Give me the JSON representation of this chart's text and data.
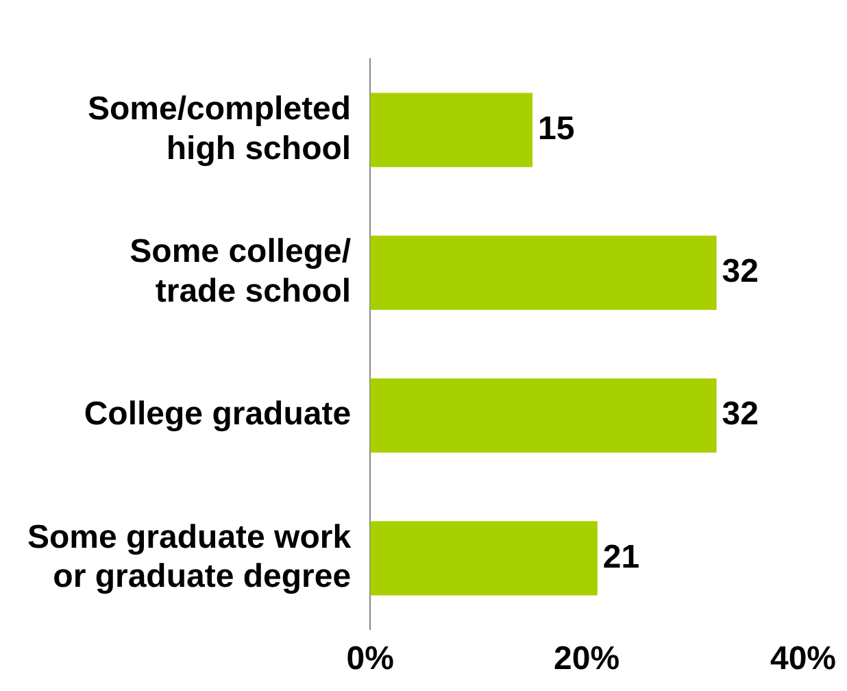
{
  "chart_data": {
    "type": "bar",
    "orientation": "horizontal",
    "categories": [
      "Some/completed high school",
      "Some college/ trade school",
      "College graduate",
      "Some graduate work or graduate degree"
    ],
    "values": [
      15,
      32,
      32,
      21
    ],
    "color": "#a8d000",
    "data_labels": true,
    "xlim": [
      0,
      40
    ],
    "xticks": [
      {
        "value": 0,
        "label": "0%"
      },
      {
        "value": 20,
        "label": "20%"
      },
      {
        "value": 40,
        "label": "40%"
      }
    ],
    "grid": false,
    "legend": false
  }
}
